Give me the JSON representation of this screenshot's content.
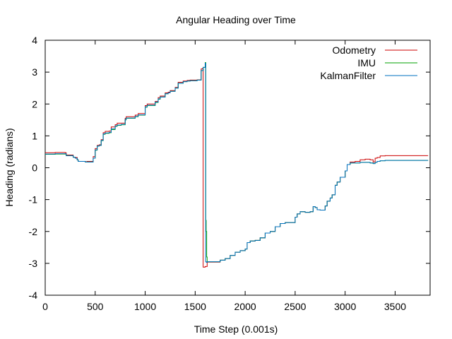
{
  "chart_data": {
    "type": "line",
    "title": "Angular Heading over Time",
    "xlabel": "Time Step (0.001s)",
    "ylabel": "Heading (radians)",
    "xlim": [
      0,
      3850
    ],
    "ylim": [
      -4,
      4
    ],
    "xticks": [
      0,
      500,
      1000,
      1500,
      2000,
      2500,
      3000,
      3500
    ],
    "yticks": [
      -4,
      -3,
      -2,
      -1,
      0,
      1,
      2,
      3,
      4
    ],
    "grid": false,
    "legend_position": "top-right",
    "series": [
      {
        "name": "Odometry",
        "color": "#cc0000",
        "x": [
          0,
          100,
          200,
          210,
          280,
          300,
          320,
          330,
          400,
          420,
          450,
          480,
          500,
          520,
          540,
          560,
          580,
          600,
          640,
          660,
          700,
          720,
          760,
          800,
          810,
          900,
          930,
          1000,
          1020,
          1100,
          1130,
          1150,
          1200,
          1230,
          1250,
          1300,
          1330,
          1380,
          1420,
          1450,
          1520,
          1560,
          1575,
          1580,
          1600,
          1620,
          1700,
          1750,
          1800,
          1850,
          1900,
          1950,
          2000,
          2020,
          2050,
          2100,
          2150,
          2200,
          2250,
          2300,
          2350,
          2400,
          2450,
          2500,
          2520,
          2550,
          2600,
          2650,
          2680,
          2700,
          2720,
          2750,
          2800,
          2820,
          2850,
          2870,
          2900,
          2920,
          2950,
          3000,
          3020,
          3050,
          3100,
          3150,
          3200,
          3250,
          3280,
          3300,
          3320,
          3350,
          3400,
          3500,
          3600,
          3700,
          3830
        ],
        "values": [
          0.47,
          0.48,
          0.47,
          0.4,
          0.33,
          0.32,
          0.25,
          0.2,
          0.19,
          0.2,
          0.2,
          0.35,
          0.6,
          0.7,
          0.72,
          0.88,
          1.1,
          1.14,
          1.15,
          1.28,
          1.35,
          1.4,
          1.4,
          1.55,
          1.6,
          1.65,
          1.7,
          1.95,
          2.0,
          2.08,
          2.2,
          2.25,
          2.35,
          2.37,
          2.42,
          2.52,
          2.68,
          2.72,
          2.74,
          2.75,
          2.76,
          3.1,
          3.12,
          -3.12,
          -3.1,
          -2.96,
          -2.96,
          -2.9,
          -2.85,
          -2.75,
          -2.65,
          -2.6,
          -2.55,
          -2.35,
          -2.3,
          -2.28,
          -2.2,
          -2.05,
          -2.0,
          -1.85,
          -1.75,
          -1.72,
          -1.72,
          -1.55,
          -1.45,
          -1.38,
          -1.4,
          -1.38,
          -1.22,
          -1.25,
          -1.32,
          -1.33,
          -1.2,
          -1.05,
          -0.95,
          -0.85,
          -0.55,
          -0.45,
          -0.3,
          -0.1,
          0.1,
          0.18,
          0.2,
          0.25,
          0.27,
          0.25,
          0.18,
          0.3,
          0.32,
          0.37,
          0.38,
          0.38,
          0.38,
          0.38,
          0.38
        ]
      },
      {
        "name": "IMU",
        "color": "#00a000",
        "x": [
          0,
          100,
          200,
          210,
          280,
          300,
          320,
          330,
          400,
          420,
          450,
          480,
          500,
          520,
          540,
          560,
          580,
          600,
          640,
          660,
          700,
          720,
          760,
          800,
          810,
          900,
          930,
          1000,
          1020,
          1100,
          1130,
          1150,
          1200,
          1230,
          1250,
          1300,
          1330,
          1380,
          1420,
          1450,
          1520,
          1560,
          1580,
          1600,
          1606,
          1610,
          1615,
          1620,
          1700,
          1750,
          1800,
          1850,
          1900,
          1950,
          2000,
          2020,
          2050,
          2100,
          2150,
          2200,
          2250,
          2300,
          2350,
          2400,
          2450,
          2500,
          2520,
          2550,
          2600,
          2650,
          2680,
          2700,
          2720,
          2750,
          2800,
          2820,
          2850,
          2870,
          2900,
          2920,
          2950,
          3000,
          3020,
          3050,
          3100,
          3150,
          3200,
          3250,
          3280,
          3300,
          3320,
          3350,
          3400,
          3500,
          3600,
          3700,
          3830
        ],
        "values": [
          0.42,
          0.43,
          0.43,
          0.38,
          0.33,
          0.3,
          0.25,
          0.2,
          0.18,
          0.18,
          0.18,
          0.3,
          0.55,
          0.68,
          0.7,
          0.85,
          1.05,
          1.08,
          1.1,
          1.2,
          1.3,
          1.33,
          1.35,
          1.5,
          1.55,
          1.6,
          1.65,
          1.9,
          1.95,
          2.05,
          2.15,
          2.22,
          2.32,
          2.35,
          2.4,
          2.5,
          2.65,
          2.7,
          2.72,
          2.73,
          2.75,
          3.05,
          3.15,
          3.3,
          -1.65,
          -2.0,
          -2.8,
          -2.95,
          -2.95,
          -2.9,
          -2.85,
          -2.75,
          -2.65,
          -2.6,
          -2.55,
          -2.35,
          -2.3,
          -2.28,
          -2.2,
          -2.05,
          -2.0,
          -1.85,
          -1.75,
          -1.72,
          -1.72,
          -1.55,
          -1.45,
          -1.38,
          -1.4,
          -1.38,
          -1.22,
          -1.25,
          -1.32,
          -1.33,
          -1.2,
          -1.05,
          -0.95,
          -0.85,
          -0.55,
          -0.45,
          -0.3,
          -0.1,
          0.1,
          0.15,
          0.15,
          0.17,
          0.17,
          0.15,
          0.13,
          0.17,
          0.2,
          0.22,
          0.23,
          0.23,
          0.23,
          0.23,
          0.23
        ]
      },
      {
        "name": "KalmanFilter",
        "color": "#0070c0",
        "x": [
          0,
          100,
          200,
          210,
          280,
          300,
          320,
          330,
          400,
          420,
          450,
          480,
          500,
          520,
          540,
          560,
          580,
          600,
          640,
          660,
          700,
          720,
          760,
          800,
          810,
          900,
          930,
          1000,
          1020,
          1100,
          1130,
          1150,
          1200,
          1230,
          1250,
          1300,
          1330,
          1380,
          1420,
          1450,
          1520,
          1560,
          1580,
          1600,
          1605,
          1612,
          1620,
          1700,
          1750,
          1800,
          1850,
          1900,
          1950,
          2000,
          2020,
          2050,
          2100,
          2150,
          2200,
          2250,
          2300,
          2350,
          2400,
          2450,
          2500,
          2520,
          2550,
          2600,
          2650,
          2680,
          2700,
          2720,
          2750,
          2800,
          2820,
          2850,
          2870,
          2900,
          2920,
          2950,
          3000,
          3020,
          3050,
          3100,
          3150,
          3200,
          3250,
          3280,
          3300,
          3320,
          3350,
          3400,
          3500,
          3600,
          3700,
          3830
        ],
        "values": [
          0.43,
          0.44,
          0.44,
          0.38,
          0.33,
          0.3,
          0.25,
          0.2,
          0.18,
          0.18,
          0.18,
          0.3,
          0.56,
          0.68,
          0.7,
          0.86,
          1.06,
          1.09,
          1.11,
          1.22,
          1.31,
          1.34,
          1.36,
          1.51,
          1.56,
          1.61,
          1.66,
          1.91,
          1.96,
          2.06,
          2.16,
          2.22,
          2.32,
          2.35,
          2.4,
          2.5,
          2.65,
          2.7,
          2.72,
          2.73,
          2.75,
          3.05,
          3.15,
          3.28,
          -2.95,
          -2.97,
          -2.95,
          -2.95,
          -2.9,
          -2.85,
          -2.75,
          -2.65,
          -2.6,
          -2.55,
          -2.35,
          -2.3,
          -2.28,
          -2.2,
          -2.05,
          -2.0,
          -1.85,
          -1.75,
          -1.72,
          -1.72,
          -1.55,
          -1.45,
          -1.38,
          -1.4,
          -1.38,
          -1.22,
          -1.25,
          -1.32,
          -1.33,
          -1.2,
          -1.05,
          -0.95,
          -0.85,
          -0.55,
          -0.45,
          -0.3,
          -0.1,
          0.1,
          0.15,
          0.15,
          0.17,
          0.17,
          0.15,
          0.13,
          0.17,
          0.2,
          0.22,
          0.23,
          0.23,
          0.23,
          0.23,
          0.23
        ]
      }
    ]
  }
}
